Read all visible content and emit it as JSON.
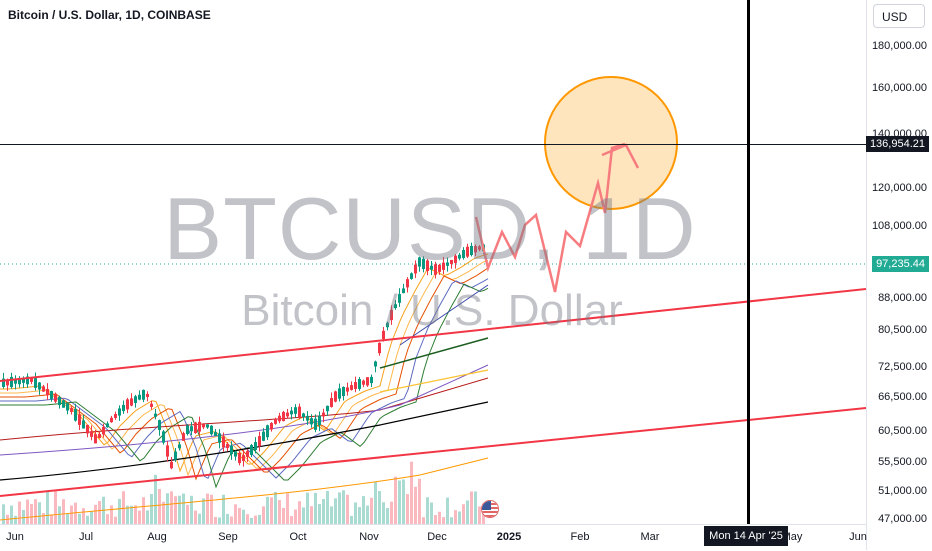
{
  "header": {
    "symbol_title": "Bitcoin / U.S. Dollar, 1D, COINBASE",
    "currency": "USD"
  },
  "watermark": {
    "symbol": "BTCUSD, 1D",
    "name": "Bitcoin / U.S. Dollar"
  },
  "price_axis": {
    "ticks": [
      "180,000.00",
      "160,000.00",
      "140,000.00",
      "120,000.00",
      "108,000.00",
      "88,000.00",
      "80,500.00",
      "72,500.00",
      "66,500.00",
      "60,500.00",
      "55,500.00",
      "51,000.00",
      "47,000.00"
    ]
  },
  "time_axis": {
    "labels": [
      "Jun",
      "Jul",
      "Aug",
      "Sep",
      "Oct",
      "Nov",
      "Dec",
      "2025",
      "Feb",
      "Mar",
      "Apr",
      "May",
      "Jun"
    ],
    "bold_label": "2025"
  },
  "crosshair": {
    "price": "136,954.21",
    "date": "Mon 14 Apr '25"
  },
  "last_price": "97,235.44",
  "colors": {
    "trendline": "#f23645",
    "projection": "#f77c80",
    "target_fill": "#ffe0b2",
    "target_stroke": "#ff9800",
    "last_price_bg": "#22ab94",
    "up_candle": "#089981",
    "down_candle": "#f23645"
  },
  "icons": [
    "us-flag-icon"
  ]
}
